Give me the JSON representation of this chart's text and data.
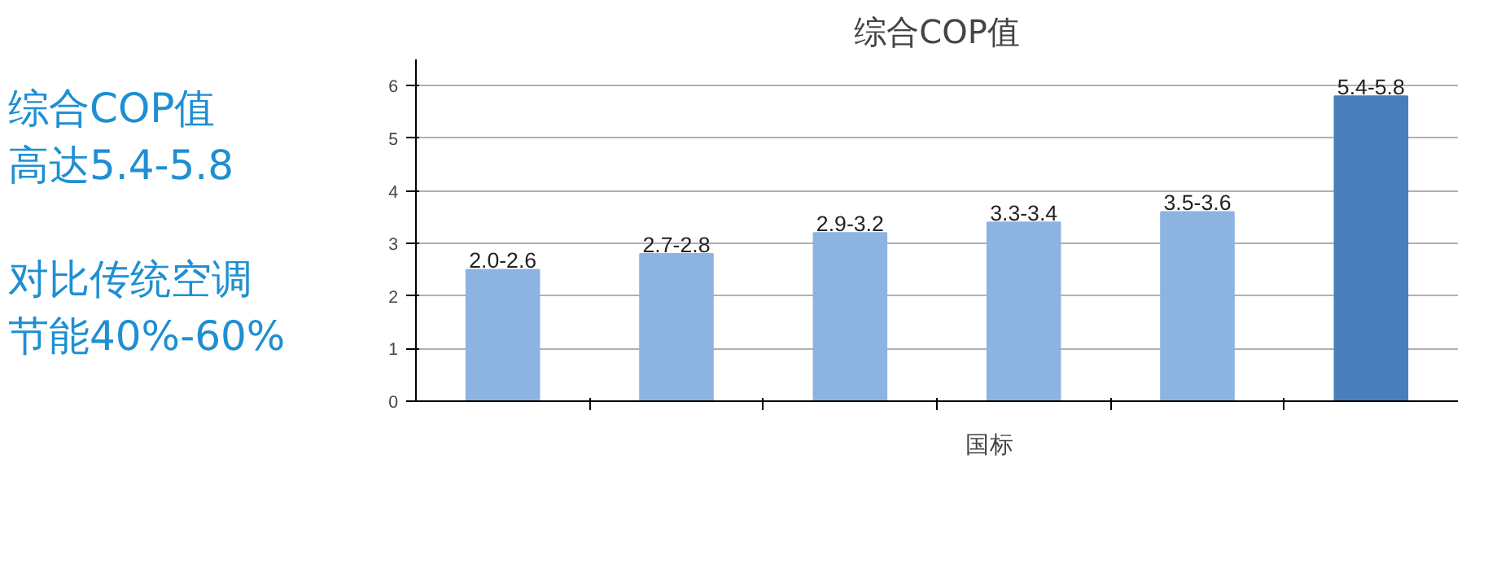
{
  "chart_data": {
    "type": "bar",
    "title": "综合COP值",
    "categories": [
      null,
      null,
      null,
      null,
      null,
      null
    ],
    "series": [
      {
        "name": "国标",
        "color": "#8db3e2",
        "values": [
          2.5,
          2.8,
          3.2,
          3.4,
          3.6,
          null
        ],
        "value_labels": [
          "2.0-2.6",
          "2.7-2.8",
          "2.9-3.2",
          "3.3-3.4",
          "3.5-3.6",
          null
        ]
      },
      {
        "color": "#4a7ebb",
        "values": [
          null,
          null,
          null,
          null,
          null,
          5.8
        ],
        "value_labels": [
          null,
          null,
          null,
          null,
          null,
          "5.4-5.8"
        ]
      }
    ],
    "ylim": [
      0,
      6.5
    ],
    "yticks": [
      0,
      1,
      2,
      3,
      4,
      5,
      6
    ],
    "grid": "y",
    "legend": "bottom",
    "annotations": [
      "综合COP值",
      "高达5.4-5.8",
      "对比传统空调",
      "节能40%-60%"
    ]
  }
}
